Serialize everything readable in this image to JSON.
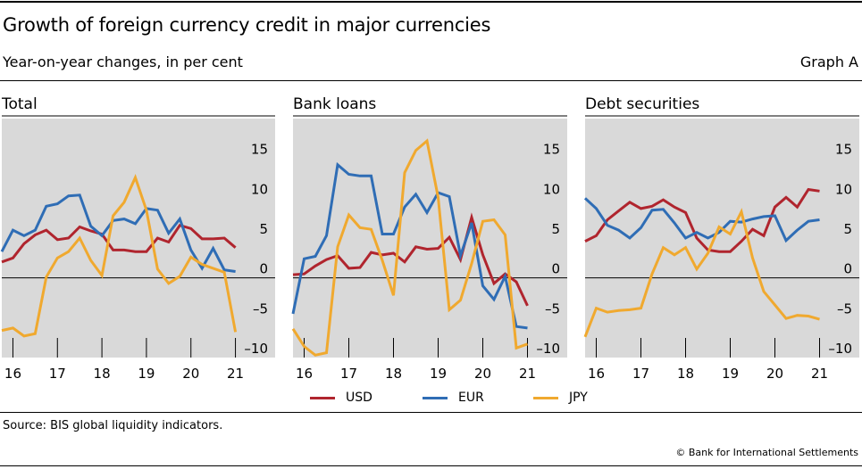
{
  "header": {
    "title": "Growth of foreign currency credit in major currencies",
    "subtitle": "Year-on-year changes, in per cent",
    "graph_label": "Graph A"
  },
  "footer": {
    "source": "Source: BIS global liquidity indicators.",
    "copyright": "© Bank for International Settlements"
  },
  "legend": [
    {
      "name": "USD",
      "color": "#b0252e"
    },
    {
      "name": "EUR",
      "color": "#2f6db5"
    },
    {
      "name": "JPY",
      "color": "#f0a92f"
    }
  ],
  "chart_data": [
    {
      "type": "line",
      "title": "Total",
      "x_ticks": [
        "16",
        "17",
        "18",
        "19",
        "20",
        "21"
      ],
      "x_range": [
        2015.75,
        2021.33
      ],
      "y_ticks": [
        15,
        10,
        5,
        0,
        -5,
        -10
      ],
      "ylim": [
        -10,
        20
      ],
      "grid": "vertical year ticks",
      "series": [
        {
          "name": "USD",
          "color": "#b0252e",
          "x": [
            2015.75,
            2016.0,
            2016.25,
            2016.5,
            2016.75,
            2017.0,
            2017.25,
            2017.5,
            2017.75,
            2018.0,
            2018.25,
            2018.5,
            2018.75,
            2019.0,
            2019.25,
            2019.5,
            2019.75,
            2020.0,
            2020.25,
            2020.5,
            2020.75,
            2021.0
          ],
          "values": [
            2.0,
            2.5,
            4.3,
            5.4,
            6.0,
            4.8,
            5.0,
            6.4,
            5.9,
            5.5,
            3.5,
            3.5,
            3.3,
            3.3,
            5.0,
            4.5,
            6.6,
            6.2,
            4.9,
            4.9,
            5.0,
            3.8
          ]
        },
        {
          "name": "EUR",
          "color": "#2f6db5",
          "x": [
            2015.75,
            2016.0,
            2016.25,
            2016.5,
            2016.75,
            2017.0,
            2017.25,
            2017.5,
            2017.75,
            2018.0,
            2018.25,
            2018.5,
            2018.75,
            2019.0,
            2019.25,
            2019.5,
            2019.75,
            2020.0,
            2020.25,
            2020.5,
            2020.75,
            2021.0
          ],
          "values": [
            3.3,
            6.0,
            5.3,
            6.0,
            9.0,
            9.3,
            10.3,
            10.4,
            6.5,
            5.3,
            7.2,
            7.4,
            6.8,
            8.7,
            8.5,
            5.6,
            7.4,
            3.5,
            1.2,
            3.7,
            1.0,
            0.8
          ]
        },
        {
          "name": "JPY",
          "color": "#f0a92f",
          "x": [
            2015.75,
            2016.0,
            2016.25,
            2016.5,
            2016.75,
            2017.0,
            2017.25,
            2017.5,
            2017.75,
            2018.0,
            2018.25,
            2018.5,
            2018.75,
            2019.0,
            2019.25,
            2019.5,
            2019.75,
            2020.0,
            2020.25,
            2020.5,
            2020.75,
            2021.0
          ],
          "values": [
            -6.6,
            -6.3,
            -7.3,
            -7.0,
            0.1,
            2.5,
            3.3,
            5.0,
            2.2,
            0.3,
            7.8,
            9.5,
            12.6,
            8.5,
            1.1,
            -0.7,
            0.2,
            2.6,
            1.7,
            1.2,
            0.7,
            -6.8
          ]
        }
      ]
    },
    {
      "type": "line",
      "title": "Bank loans",
      "x_ticks": [
        "16",
        "17",
        "18",
        "19",
        "20",
        "21"
      ],
      "x_range": [
        2015.75,
        2021.33
      ],
      "y_ticks": [
        15,
        10,
        5,
        0,
        -5,
        -10
      ],
      "ylim": [
        -10,
        20
      ],
      "grid": "vertical year ticks",
      "series": [
        {
          "name": "USD",
          "color": "#b0252e",
          "x": [
            2015.75,
            2016.0,
            2016.25,
            2016.5,
            2016.75,
            2017.0,
            2017.25,
            2017.5,
            2017.75,
            2018.0,
            2018.25,
            2018.5,
            2018.75,
            2019.0,
            2019.25,
            2019.5,
            2019.75,
            2020.0,
            2020.25,
            2020.5,
            2020.75,
            2021.0
          ],
          "values": [
            0.4,
            0.5,
            1.5,
            2.3,
            2.8,
            1.2,
            1.3,
            3.2,
            2.9,
            3.1,
            2.0,
            3.9,
            3.6,
            3.7,
            5.1,
            2.3,
            7.6,
            2.9,
            -0.7,
            0.5,
            -0.5,
            -3.5
          ]
        },
        {
          "name": "EUR",
          "color": "#2f6db5",
          "x": [
            2015.75,
            2016.0,
            2016.25,
            2016.5,
            2016.75,
            2017.0,
            2017.25,
            2017.5,
            2017.75,
            2018.0,
            2018.25,
            2018.5,
            2018.75,
            2019.0,
            2019.25,
            2019.5,
            2019.75,
            2020.0,
            2020.25,
            2020.5,
            2020.75,
            2021.0
          ],
          "values": [
            -4.5,
            2.4,
            2.7,
            5.3,
            14.2,
            13.0,
            12.8,
            12.8,
            5.5,
            5.5,
            8.9,
            10.5,
            8.2,
            10.7,
            10.2,
            2.8,
            6.9,
            -1.0,
            -2.7,
            0.2,
            -6.1,
            -6.3
          ]
        },
        {
          "name": "JPY",
          "color": "#f0a92f",
          "x": [
            2015.75,
            2016.0,
            2016.25,
            2016.5,
            2016.75,
            2017.0,
            2017.25,
            2017.5,
            2017.75,
            2018.0,
            2018.25,
            2018.5,
            2018.75,
            2019.0,
            2019.25,
            2019.5,
            2019.75,
            2020.0,
            2020.25,
            2020.5,
            2020.75,
            2021.0
          ],
          "values": [
            -6.4,
            -8.6,
            -9.7,
            -9.4,
            3.9,
            7.9,
            6.3,
            6.1,
            2.2,
            -2.2,
            13.2,
            16.0,
            17.2,
            10.1,
            -4.0,
            -2.8,
            1.8,
            7.1,
            7.3,
            5.4,
            -8.8,
            -8.3
          ]
        }
      ]
    },
    {
      "type": "line",
      "title": "Debt securities",
      "x_ticks": [
        "16",
        "17",
        "18",
        "19",
        "20",
        "21"
      ],
      "x_range": [
        2015.75,
        2021.33
      ],
      "y_ticks": [
        15,
        10,
        5,
        0,
        -5,
        -10
      ],
      "ylim": [
        -10,
        20
      ],
      "grid": "vertical year ticks",
      "series": [
        {
          "name": "USD",
          "color": "#b0252e",
          "x": [
            2015.75,
            2016.0,
            2016.25,
            2016.5,
            2016.75,
            2017.0,
            2017.25,
            2017.5,
            2017.75,
            2018.0,
            2018.25,
            2018.5,
            2018.75,
            2019.0,
            2019.25,
            2019.5,
            2019.75,
            2020.0,
            2020.25,
            2020.5,
            2020.75,
            2021.0
          ],
          "values": [
            4.6,
            5.3,
            7.3,
            8.4,
            9.5,
            8.7,
            9.0,
            9.8,
            8.9,
            8.2,
            5.0,
            3.5,
            3.3,
            3.3,
            4.6,
            6.1,
            5.3,
            8.9,
            10.1,
            8.9,
            11.1,
            10.9
          ]
        },
        {
          "name": "EUR",
          "color": "#2f6db5",
          "x": [
            2015.75,
            2016.0,
            2016.25,
            2016.5,
            2016.75,
            2017.0,
            2017.25,
            2017.5,
            2017.75,
            2018.0,
            2018.25,
            2018.5,
            2018.75,
            2019.0,
            2019.25,
            2019.5,
            2019.75,
            2020.0,
            2020.25,
            2020.5,
            2020.75,
            2021.0
          ],
          "values": [
            10.0,
            8.7,
            6.6,
            6.0,
            5.0,
            6.3,
            8.5,
            8.6,
            6.9,
            5.0,
            5.7,
            5.0,
            5.7,
            7.1,
            7.0,
            7.4,
            7.7,
            7.8,
            4.7,
            6.0,
            7.1,
            7.3
          ]
        },
        {
          "name": "JPY",
          "color": "#f0a92f",
          "x": [
            2015.75,
            2016.0,
            2016.25,
            2016.5,
            2016.75,
            2017.0,
            2017.25,
            2017.5,
            2017.75,
            2018.0,
            2018.25,
            2018.5,
            2018.75,
            2019.0,
            2019.25,
            2019.5,
            2019.75,
            2020.0,
            2020.25,
            2020.5,
            2020.75,
            2021.0
          ],
          "values": [
            -7.4,
            -3.8,
            -4.3,
            -4.1,
            -4.0,
            -3.8,
            0.5,
            3.8,
            2.9,
            3.8,
            1.1,
            3.1,
            6.4,
            5.5,
            8.3,
            2.5,
            -1.7,
            -3.4,
            -5.1,
            -4.7,
            -4.8,
            -5.2
          ]
        }
      ]
    }
  ]
}
